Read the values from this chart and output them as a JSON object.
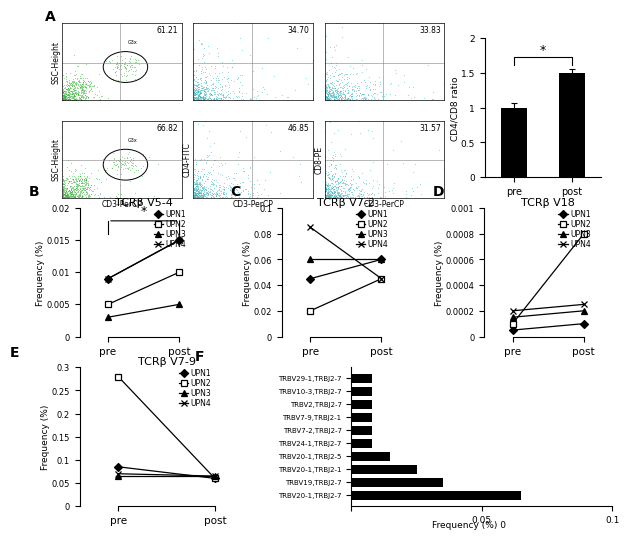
{
  "panel_B": {
    "title": "TCRβ V5-4",
    "ylabel": "Frequency (%)",
    "xlabels": [
      "pre",
      "post"
    ],
    "ylim": [
      0,
      0.02
    ],
    "yticks": [
      0,
      0.005,
      0.01,
      0.015,
      0.02
    ],
    "upn1": [
      0.009,
      0.015
    ],
    "upn2": [
      0.005,
      0.01
    ],
    "upn3": [
      0.003,
      0.005
    ],
    "upn4": [
      0.009,
      0.015
    ]
  },
  "panel_C": {
    "title": "TCRβ V7-2",
    "ylabel": "Frequency (%)",
    "xlabels": [
      "pre",
      "post"
    ],
    "ylim": [
      0,
      0.1
    ],
    "yticks": [
      0,
      0.02,
      0.04,
      0.06,
      0.08,
      0.1
    ],
    "upn1": [
      0.045,
      0.06
    ],
    "upn2": [
      0.02,
      0.045
    ],
    "upn3": [
      0.06,
      0.06
    ],
    "upn4": [
      0.085,
      0.045
    ]
  },
  "panel_D": {
    "title": "TCRβ V18",
    "ylabel": "Frequency (%)",
    "xlabels": [
      "pre",
      "post"
    ],
    "ylim": [
      0,
      0.001
    ],
    "yticks": [
      0,
      0.0002,
      0.0004,
      0.0006,
      0.0008,
      0.001
    ],
    "upn1": [
      5e-05,
      0.0001
    ],
    "upn2": [
      0.0001,
      0.0008
    ],
    "upn3": [
      0.00015,
      0.0002
    ],
    "upn4": [
      0.0002,
      0.00025
    ]
  },
  "panel_E": {
    "title": "TCRβ V7-9",
    "ylabel": "Frequency (%)",
    "xlabels": [
      "pre",
      "post"
    ],
    "ylim": [
      0,
      0.3
    ],
    "yticks": [
      0,
      0.05,
      0.1,
      0.15,
      0.2,
      0.25,
      0.3
    ],
    "upn1": [
      0.085,
      0.06
    ],
    "upn2": [
      0.28,
      0.06
    ],
    "upn3": [
      0.065,
      0.065
    ],
    "upn4": [
      0.07,
      0.065
    ]
  },
  "panel_F": {
    "xlabel": "Frequency (%)",
    "xlim": [
      0,
      0.1
    ],
    "xticks": [
      0,
      0.05,
      0.1
    ],
    "xticklabels": [
      "0",
      "0.05",
      "0.1"
    ],
    "labels": [
      "TRBV29-1,TRBJ2-7",
      "TRBV10-3,TRBJ2-7",
      "TRBV2,TRBJ2-7",
      "TRBV7-9,TRBJ2-1",
      "TRBV7-2,TRBJ2-7",
      "TRBV24-1,TRBJ2-7",
      "TRBV20-1,TRBJ2-5",
      "TRBV20-1,TRBJ2-1",
      "TRBV19,TRBJ2-7",
      "TRBV20-1,TRBJ2-7"
    ],
    "values": [
      0.008,
      0.008,
      0.008,
      0.008,
      0.008,
      0.008,
      0.015,
      0.025,
      0.035,
      0.065
    ]
  },
  "bar_chart": {
    "ylabel": "CD4/CD8 ratio",
    "categories": [
      "pre",
      "post"
    ],
    "values": [
      1.0,
      1.5
    ],
    "errors": [
      0.07,
      0.06
    ],
    "ylim": [
      0,
      2
    ],
    "yticks": [
      0,
      0.5,
      1.0,
      1.5,
      2.0
    ],
    "yticklabels": [
      "0",
      "0.5",
      "1",
      "1.5",
      "2"
    ]
  },
  "flow_percentages_top": [
    "61.21",
    "34.70",
    "33.83"
  ],
  "flow_percentages_bot": [
    "66.82",
    "46.85",
    "31.57"
  ],
  "flow_ylabels": [
    "SSC-Height",
    "CD4-FITC",
    "CD8-PE"
  ],
  "flow_xlabel": "CD3-PerCP",
  "legend_labels": [
    "UPN1",
    "UPN2",
    "UPN3",
    "UPN4"
  ],
  "markers": [
    "D",
    "s",
    "^",
    "x"
  ],
  "marker_fills": [
    "black",
    "white",
    "black",
    "black"
  ]
}
